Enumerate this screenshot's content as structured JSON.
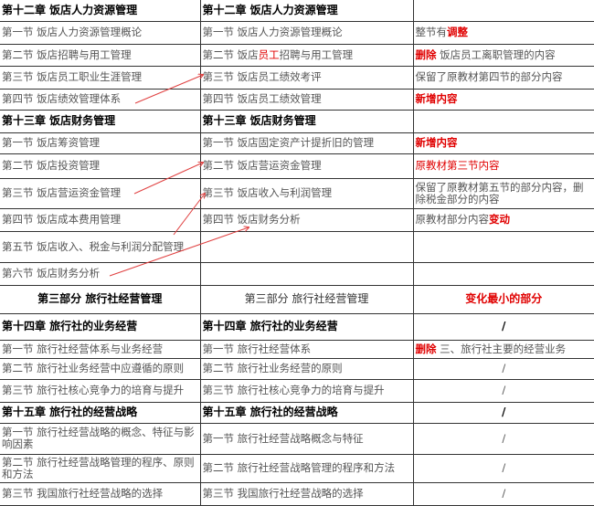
{
  "colors": {
    "accent_red": "#e00000",
    "arrow": "#e04040"
  },
  "rows": [
    {
      "type": "chapter",
      "c1": [
        {
          "t": "第十二章  饭店人力资源管理"
        }
      ],
      "c2": [
        {
          "t": "第十二章  饭店人力资源管理"
        }
      ],
      "c3": []
    },
    {
      "type": "section",
      "c1": [
        {
          "t": "第一节  饭店人力资源管理概论"
        }
      ],
      "c2": [
        {
          "t": "第一节  饭店人力资源管理概论"
        }
      ],
      "c3": [
        {
          "t": "整节有"
        },
        {
          "t": "调整",
          "s": "red"
        }
      ]
    },
    {
      "type": "section",
      "c1": [
        {
          "t": "第二节  饭店招聘与用工管理"
        }
      ],
      "c2": [
        {
          "t": "第二节  饭店"
        },
        {
          "t": "员工",
          "s": "redn"
        },
        {
          "t": "招聘与用工管理"
        }
      ],
      "c3": [
        {
          "t": "删除",
          "s": "red"
        },
        {
          "t": "  饭店员工离职管理的内容"
        }
      ]
    },
    {
      "type": "section",
      "c1": [
        {
          "t": "第三节  饭店员工职业生涯管理"
        }
      ],
      "c2": [
        {
          "t": "第三节  饭店员工绩效考评"
        }
      ],
      "c3": [
        {
          "t": "保留了原教材第四节的部分内容"
        }
      ]
    },
    {
      "type": "section",
      "c1": [
        {
          "t": "第四节  饭店绩效管理体系"
        }
      ],
      "c2": [
        {
          "t": "第四节  饭店员工绩效管理"
        }
      ],
      "c3": [
        {
          "t": "新增内容",
          "s": "red"
        }
      ]
    },
    {
      "type": "chapter",
      "c1": [
        {
          "t": "第十三章  饭店财务管理"
        }
      ],
      "c2": [
        {
          "t": "第十三章  饭店财务管理"
        }
      ],
      "c3": []
    },
    {
      "type": "section",
      "c1": [
        {
          "t": "第一节  饭店筹资管理"
        }
      ],
      "c2": [
        {
          "t": "第一节  饭店固定资产计提折旧的管理"
        }
      ],
      "c3": [
        {
          "t": "新增内容",
          "s": "red"
        }
      ]
    },
    {
      "type": "section",
      "c1": [
        {
          "t": "第二节  饭店投资管理"
        }
      ],
      "c2": [
        {
          "t": "第二节  饭店营运资金管理"
        }
      ],
      "c3": [
        {
          "t": "原教材第三节内容",
          "s": "redn"
        }
      ]
    },
    {
      "type": "section",
      "c1": [
        {
          "t": "第三节  饭店营运资金管理"
        }
      ],
      "c2": [
        {
          "t": "第三节  饭店收入与利润管理"
        }
      ],
      "c3": [
        {
          "t": "保留了原教材第五节的部分内容，删除税金部分的内容"
        }
      ]
    },
    {
      "type": "section",
      "c1": [
        {
          "t": "第四节  饭店成本费用管理"
        }
      ],
      "c2": [
        {
          "t": "第四节  饭店财务分析"
        }
      ],
      "c3": [
        {
          "t": "原教材部分内容"
        },
        {
          "t": "变动",
          "s": "red"
        }
      ]
    },
    {
      "type": "section",
      "c1": [
        {
          "t": "第五节  饭店收入、税金与利润分配管理"
        }
      ],
      "c2": [],
      "c3": []
    },
    {
      "type": "section",
      "c1": [
        {
          "t": "第六节  饭店财务分析"
        }
      ],
      "c2": [],
      "c3": []
    },
    {
      "type": "part",
      "c1": [
        {
          "t": "第三部分  旅行社经营管理"
        }
      ],
      "c2": [
        {
          "t": "第三部分  旅行社经营管理"
        }
      ],
      "c3": [
        {
          "t": "变化最小的部分",
          "s": "red"
        }
      ]
    },
    {
      "type": "chapter",
      "c1": [
        {
          "t": "第十四章  旅行社的业务经营"
        }
      ],
      "c2": [
        {
          "t": "第十四章  旅行社的业务经营"
        }
      ],
      "c3": [
        {
          "t": "/",
          "s": "center"
        }
      ]
    },
    {
      "type": "section",
      "c1": [
        {
          "t": "第一节  旅行社经营体系与业务经营"
        }
      ],
      "c2": [
        {
          "t": "第一节  旅行社经营体系"
        }
      ],
      "c3": [
        {
          "t": "删除",
          "s": "red"
        },
        {
          "t": "  三、旅行社主要的经营业务"
        }
      ]
    },
    {
      "type": "section",
      "c1": [
        {
          "t": "第二节  旅行社业务经营中应遵循的原则"
        }
      ],
      "c2": [
        {
          "t": "第二节  旅行社业务经营的原则"
        }
      ],
      "c3": [
        {
          "t": "/",
          "s": "center"
        }
      ]
    },
    {
      "type": "section",
      "c1": [
        {
          "t": "第三节  旅行社核心竞争力的培育与提升"
        }
      ],
      "c2": [
        {
          "t": "第三节  旅行社核心竞争力的培育与提升"
        }
      ],
      "c3": [
        {
          "t": "/",
          "s": "center"
        }
      ]
    },
    {
      "type": "chapter",
      "c1": [
        {
          "t": "第十五章  旅行社的经营战略"
        }
      ],
      "c2": [
        {
          "t": "第十五章  旅行社的经营战略"
        }
      ],
      "c3": [
        {
          "t": "/",
          "s": "center"
        }
      ]
    },
    {
      "type": "section",
      "c1": [
        {
          "t": "第一节  旅行社经营战略的概念、特征与影响因素"
        }
      ],
      "c2": [
        {
          "t": "第一节  旅行社经营战略概念与特征"
        }
      ],
      "c3": [
        {
          "t": "/",
          "s": "center"
        }
      ]
    },
    {
      "type": "section",
      "c1": [
        {
          "t": "第二节  旅行社经营战略管理的程序、原则和方法"
        }
      ],
      "c2": [
        {
          "t": "第二节  旅行社经营战略管理的程序和方法"
        }
      ],
      "c3": [
        {
          "t": "/",
          "s": "center"
        }
      ]
    },
    {
      "type": "section",
      "c1": [
        {
          "t": "第三节  我国旅行社经营战略的选择"
        }
      ],
      "c2": [
        {
          "t": "第三节  我国旅行社经营战略的选择"
        }
      ],
      "c3": [
        {
          "t": "/",
          "s": "center"
        }
      ]
    }
  ]
}
